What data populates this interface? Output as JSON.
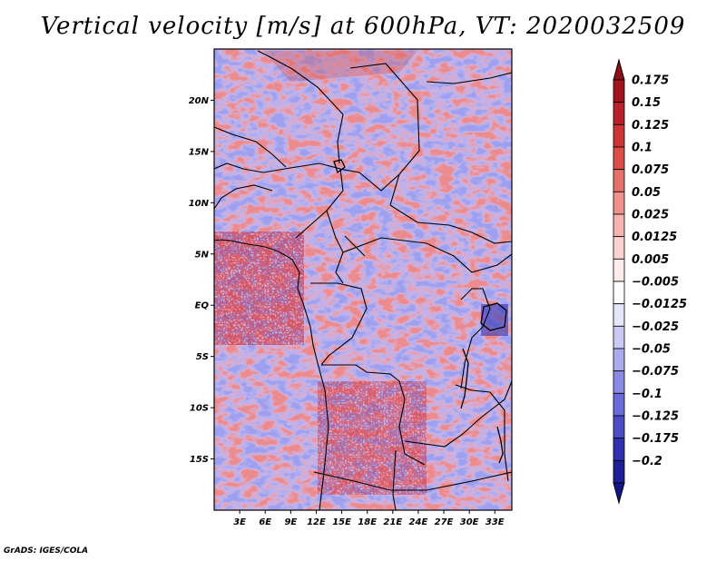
{
  "title": "Vertical velocity [m/s] at 600hPa, VT: 2020032509",
  "credit": "GrADS: IGES/COLA",
  "map": {
    "lon_range": [
      0,
      35
    ],
    "lat_range": [
      -20,
      25
    ],
    "lat_ticks": [
      {
        "lat": 20,
        "label": "20N"
      },
      {
        "lat": 15,
        "label": "15N"
      },
      {
        "lat": 10,
        "label": "10N"
      },
      {
        "lat": 5,
        "label": "5N"
      },
      {
        "lat": 0,
        "label": "EQ"
      },
      {
        "lat": -5,
        "label": "5S"
      },
      {
        "lat": -10,
        "label": "10S"
      },
      {
        "lat": -15,
        "label": "15S"
      }
    ],
    "lon_ticks": [
      {
        "lon": 3,
        "label": "3E"
      },
      {
        "lon": 6,
        "label": "6E"
      },
      {
        "lon": 9,
        "label": "9E"
      },
      {
        "lon": 12,
        "label": "12E"
      },
      {
        "lon": 15,
        "label": "15E"
      },
      {
        "lon": 18,
        "label": "18E"
      },
      {
        "lon": 21,
        "label": "21E"
      },
      {
        "lon": 24,
        "label": "24E"
      },
      {
        "lon": 27,
        "label": "27E"
      },
      {
        "lon": 30,
        "label": "30E"
      },
      {
        "lon": 33,
        "label": "33E"
      }
    ]
  },
  "colorbar": {
    "levels": [
      {
        "label": "0.175",
        "color": "#a0141e"
      },
      {
        "label": "0.15",
        "color": "#b8202a"
      },
      {
        "label": "0.125",
        "color": "#cd3434"
      },
      {
        "label": "0.1",
        "color": "#dc4e48"
      },
      {
        "label": "0.075",
        "color": "#e6706a"
      },
      {
        "label": "0.05",
        "color": "#ee918c"
      },
      {
        "label": "0.025",
        "color": "#f5b4b0"
      },
      {
        "label": "0.0125",
        "color": "#fad2cf"
      },
      {
        "label": "0.005",
        "color": "#fdecea"
      },
      {
        "label": "−0.005",
        "color": "#ffffff"
      },
      {
        "label": "−0.0125",
        "color": "#e6e6fa"
      },
      {
        "label": "−0.025",
        "color": "#cacaf4"
      },
      {
        "label": "−0.05",
        "color": "#aaaaee"
      },
      {
        "label": "−0.075",
        "color": "#8a8ae4"
      },
      {
        "label": "−0.1",
        "color": "#6a6ad8"
      },
      {
        "label": "−0.125",
        "color": "#4c4cc6"
      },
      {
        "label": "−0.175",
        "color": "#3030b0"
      },
      {
        "label": "−0.2",
        "color": "#1e1e96"
      }
    ],
    "top_color": "#8c1018",
    "bottom_color": "#14148a"
  }
}
